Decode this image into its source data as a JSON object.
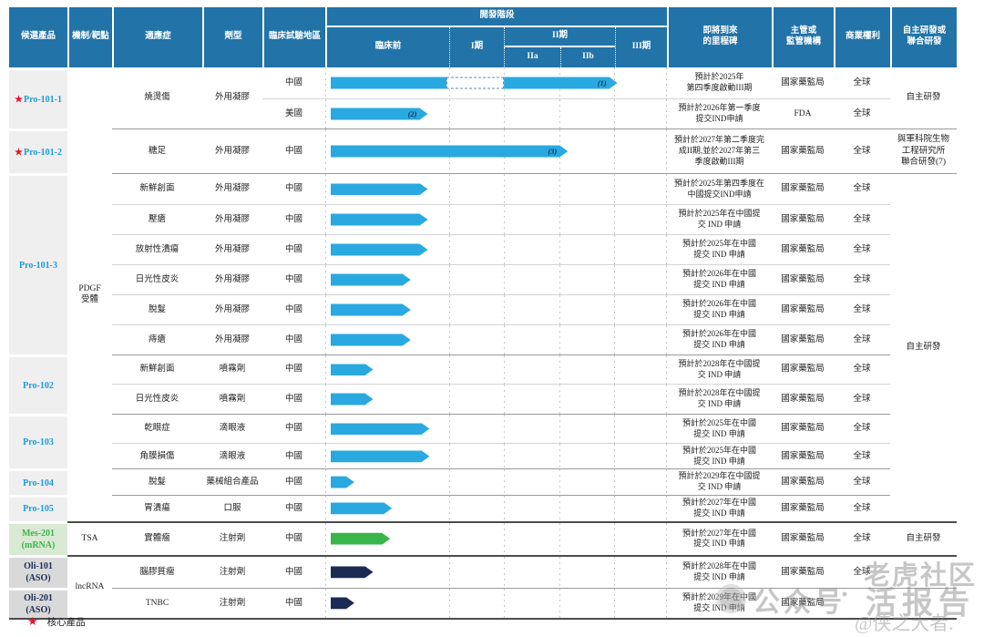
{
  "palette": {
    "header_blue": "#2173A8",
    "bar_blue": "#29A9DF",
    "bar_green": "#39B54A",
    "bar_navy": "#1B2B55",
    "product_blue": "#1C9BD8",
    "core_star_red": "#E8112D",
    "product_bg_gray": "#efefef",
    "mrna_bg_green": "#D8EAD3",
    "aso_bg_gray": "#D9D9D9"
  },
  "header": {
    "col_product": "候選產品",
    "col_mechanism": "機制/靶點",
    "col_indication": "適應症",
    "col_dosage": "劑型",
    "col_region": "臨床試驗地區",
    "stage_title": "開發階段",
    "stage_preclinical": "臨床前",
    "stage_1": "I期",
    "stage_2": "II期",
    "stage_2a": "IIa",
    "stage_2b": "IIb",
    "stage_3": "III期",
    "col_milestone": "即將到來\n的里程碑",
    "col_regulator": "主管或\n監管機構",
    "col_rights": "商業權利",
    "col_rnd": "自主研發或\n聯合研發"
  },
  "legend": {
    "star": "★",
    "label": "核心產品"
  },
  "watermark": {
    "logo": "tiger-logo",
    "part1": "公众号",
    "separator": "·",
    "part2": "老虎社区",
    "part3": "活报告",
    "part4": "@侠之大者."
  },
  "chart_data": {
    "type": "table",
    "title": "開發階段",
    "stages": [
      "臨床前",
      "I期",
      "IIa",
      "IIb",
      "III期"
    ],
    "stage_bounds_pct": [
      0,
      36.27,
      52.27,
      68.8,
      84.8,
      100
    ],
    "rows": [
      {
        "star": "★",
        "product": "Pro-101-1",
        "mechanism": "PDGF\n受體",
        "indication": "燒燙傷",
        "dosage": "外用凝膠",
        "region": "中國",
        "bar": {
          "segments": [
            {
              "kind": "solid",
              "start": 1.5,
              "end": 35.5,
              "color": "#29A9DF"
            },
            {
              "kind": "dashed",
              "start": 35.5,
              "end": 52.3
            },
            {
              "kind": "arrow",
              "start": 52.3,
              "end": 85.5,
              "color": "#29A9DF",
              "label": "(1)"
            }
          ]
        },
        "milestone": "預計於2025年\n第四季度啟動III期",
        "regulator": "國家藥監局",
        "rights": "全球",
        "rnd": "自主研發"
      },
      {
        "region": "美國",
        "bar": {
          "segments": [
            {
              "kind": "arrow",
              "start": 1.5,
              "end": 30,
              "color": "#29A9DF",
              "label": "(2)"
            }
          ]
        },
        "milestone": "預計於2026年第一季度\n提交IND申請",
        "regulator": "FDA",
        "rights": "全球"
      },
      {
        "star": "★",
        "product": "Pro-101-2",
        "indication": "糖足",
        "dosage": "外用凝膠",
        "region": "中國",
        "bar": {
          "segments": [
            {
              "kind": "arrow",
              "start": 1.5,
              "end": 71,
              "color": "#29A9DF",
              "label": "(3)"
            }
          ]
        },
        "milestone": "預計於2027年第二季度完\n成II期,並於2027年第三\n季度啟動III期",
        "regulator": "國家藥監局",
        "rights": "全球",
        "rnd": "與軍科院生物\n工程研究所\n聯合研發(7)"
      },
      {
        "product": "Pro-101-3",
        "indication": "新鮮創面",
        "dosage": "外用凝膠",
        "region": "中國",
        "bar": {
          "segments": [
            {
              "kind": "arrow",
              "start": 1.5,
              "end": 30,
              "color": "#29A9DF"
            }
          ]
        },
        "milestone": "預計於2025年第四季度在\n中國提交IND申請",
        "regulator": "國家藥監局",
        "rights": "全球",
        "rnd": "自主研發"
      },
      {
        "indication": "壓瘡",
        "dosage": "外用凝膠",
        "region": "中國",
        "bar": {
          "segments": [
            {
              "kind": "arrow",
              "start": 1.5,
              "end": 30,
              "color": "#29A9DF"
            }
          ]
        },
        "milestone": "預計於2025年在中國提\n交 IND 申請",
        "regulator": "國家藥監局",
        "rights": "全球"
      },
      {
        "indication": "放射性潰瘍",
        "dosage": "外用凝膠",
        "region": "中國",
        "bar": {
          "segments": [
            {
              "kind": "arrow",
              "start": 1.5,
              "end": 30,
              "color": "#29A9DF"
            }
          ]
        },
        "milestone": "預計於2025年在中國\n提交 IND 申請",
        "regulator": "國家藥監局",
        "rights": "全球"
      },
      {
        "indication": "日光性皮炎",
        "dosage": "外用凝膠",
        "region": "中國",
        "bar": {
          "segments": [
            {
              "kind": "arrow",
              "start": 1.5,
              "end": 25,
              "color": "#29A9DF"
            }
          ]
        },
        "milestone": "預計於2026年在中國\n提交 IND 申請",
        "regulator": "國家藥監局",
        "rights": "全球"
      },
      {
        "indication": "脫髮",
        "dosage": "外用凝膠",
        "region": "中國",
        "bar": {
          "segments": [
            {
              "kind": "arrow",
              "start": 1.5,
              "end": 25,
              "color": "#29A9DF"
            }
          ]
        },
        "milestone": "預計於2026年在中國\n提交 IND 申請",
        "regulator": "國家藥監局",
        "rights": "全球"
      },
      {
        "indication": "痔瘡",
        "dosage": "外用凝膠",
        "region": "中國",
        "bar": {
          "segments": [
            {
              "kind": "arrow",
              "start": 1.5,
              "end": 25,
              "color": "#29A9DF"
            }
          ]
        },
        "milestone": "預計於2026年在中國\n提交 IND 申請",
        "regulator": "國家藥監局",
        "rights": "全球"
      },
      {
        "product": "Pro-102",
        "indication": "新鮮創面",
        "dosage": "噴霧劑",
        "region": "中國",
        "bar": {
          "segments": [
            {
              "kind": "arrow",
              "start": 1.5,
              "end": 14,
              "color": "#29A9DF"
            }
          ]
        },
        "milestone": "預計於2028年在中國提\n交 IND 申請",
        "regulator": "國家藥監局",
        "rights": "全球"
      },
      {
        "indication": "日光性皮炎",
        "dosage": "噴霧劑",
        "region": "中國",
        "bar": {
          "segments": [
            {
              "kind": "arrow",
              "start": 1.5,
              "end": 14,
              "color": "#29A9DF"
            }
          ]
        },
        "milestone": "預計於2028年在中國提\n交 IND 申請",
        "regulator": "國家藥監局",
        "rights": "全球"
      },
      {
        "product": "Pro-103",
        "indication": "乾眼症",
        "dosage": "滴眼液",
        "region": "中國",
        "bar": {
          "segments": [
            {
              "kind": "arrow",
              "start": 1.5,
              "end": 30.5,
              "color": "#29A9DF"
            }
          ]
        },
        "milestone": "預計於2025年在中國\n提交 IND 申請",
        "regulator": "國家藥監局",
        "rights": "全球"
      },
      {
        "indication": "角膜損傷",
        "dosage": "滴眼液",
        "region": "中國",
        "bar": {
          "segments": [
            {
              "kind": "arrow",
              "start": 1.5,
              "end": 30.5,
              "color": "#29A9DF"
            }
          ]
        },
        "milestone": "預計於2025年在中國\n提交 IND 申請",
        "regulator": "國家藥監局",
        "rights": "全球"
      },
      {
        "product": "Pro-104",
        "indication": "脫髮",
        "dosage": "藥械組合產品",
        "region": "中國",
        "bar": {
          "segments": [
            {
              "kind": "arrow",
              "start": 1.5,
              "end": 8.5,
              "color": "#29A9DF"
            }
          ]
        },
        "milestone": "預計於2029年在中國提\n交 IND 申請",
        "regulator": "國家藥監局",
        "rights": "全球"
      },
      {
        "product": "Pro-105",
        "indication": "胃潰瘍",
        "dosage": "口服",
        "region": "中國",
        "bar": {
          "segments": [
            {
              "kind": "arrow",
              "start": 1.5,
              "end": 19.5,
              "color": "#29A9DF"
            }
          ]
        },
        "milestone": "預計於2027年在中國\n提交 IND 申請",
        "regulator": "國家藥監局",
        "rights": "全球"
      },
      {
        "product": "Mes-201\n(mRNA)",
        "mechanism": "TSA",
        "indication": "實體瘤",
        "dosage": "注射劑",
        "region": "中國",
        "bar": {
          "segments": [
            {
              "kind": "arrow",
              "start": 1.5,
              "end": 19,
              "color": "#39B54A"
            }
          ]
        },
        "milestone": "預計於2027年在中國\n提交 IND 申請",
        "regulator": "國家藥監局",
        "rights": "全球",
        "rnd": "自主研發"
      },
      {
        "product": "Oli-101\n(ASO)",
        "mechanism": "lncRNA",
        "indication": "腦膠質瘤",
        "dosage": "注射劑",
        "region": "中國",
        "bar": {
          "segments": [
            {
              "kind": "arrow",
              "start": 1.5,
              "end": 14,
              "color": "#1B2B55"
            }
          ]
        },
        "milestone": "預計於2028年在中國\n提交 IND 申請",
        "regulator": "國家藥監局",
        "rights": "全球"
      },
      {
        "product": "Oli-201\n(ASO)",
        "indication": "TNBC",
        "dosage": "注射劑",
        "region": "中國",
        "bar": {
          "segments": [
            {
              "kind": "arrow",
              "start": 1.5,
              "end": 8.5,
              "color": "#1B2B55"
            }
          ]
        },
        "milestone": "預計於2029年在中國\n提交 IND 申請",
        "regulator": "國家藥監局",
        "rights": "全球"
      }
    ]
  }
}
